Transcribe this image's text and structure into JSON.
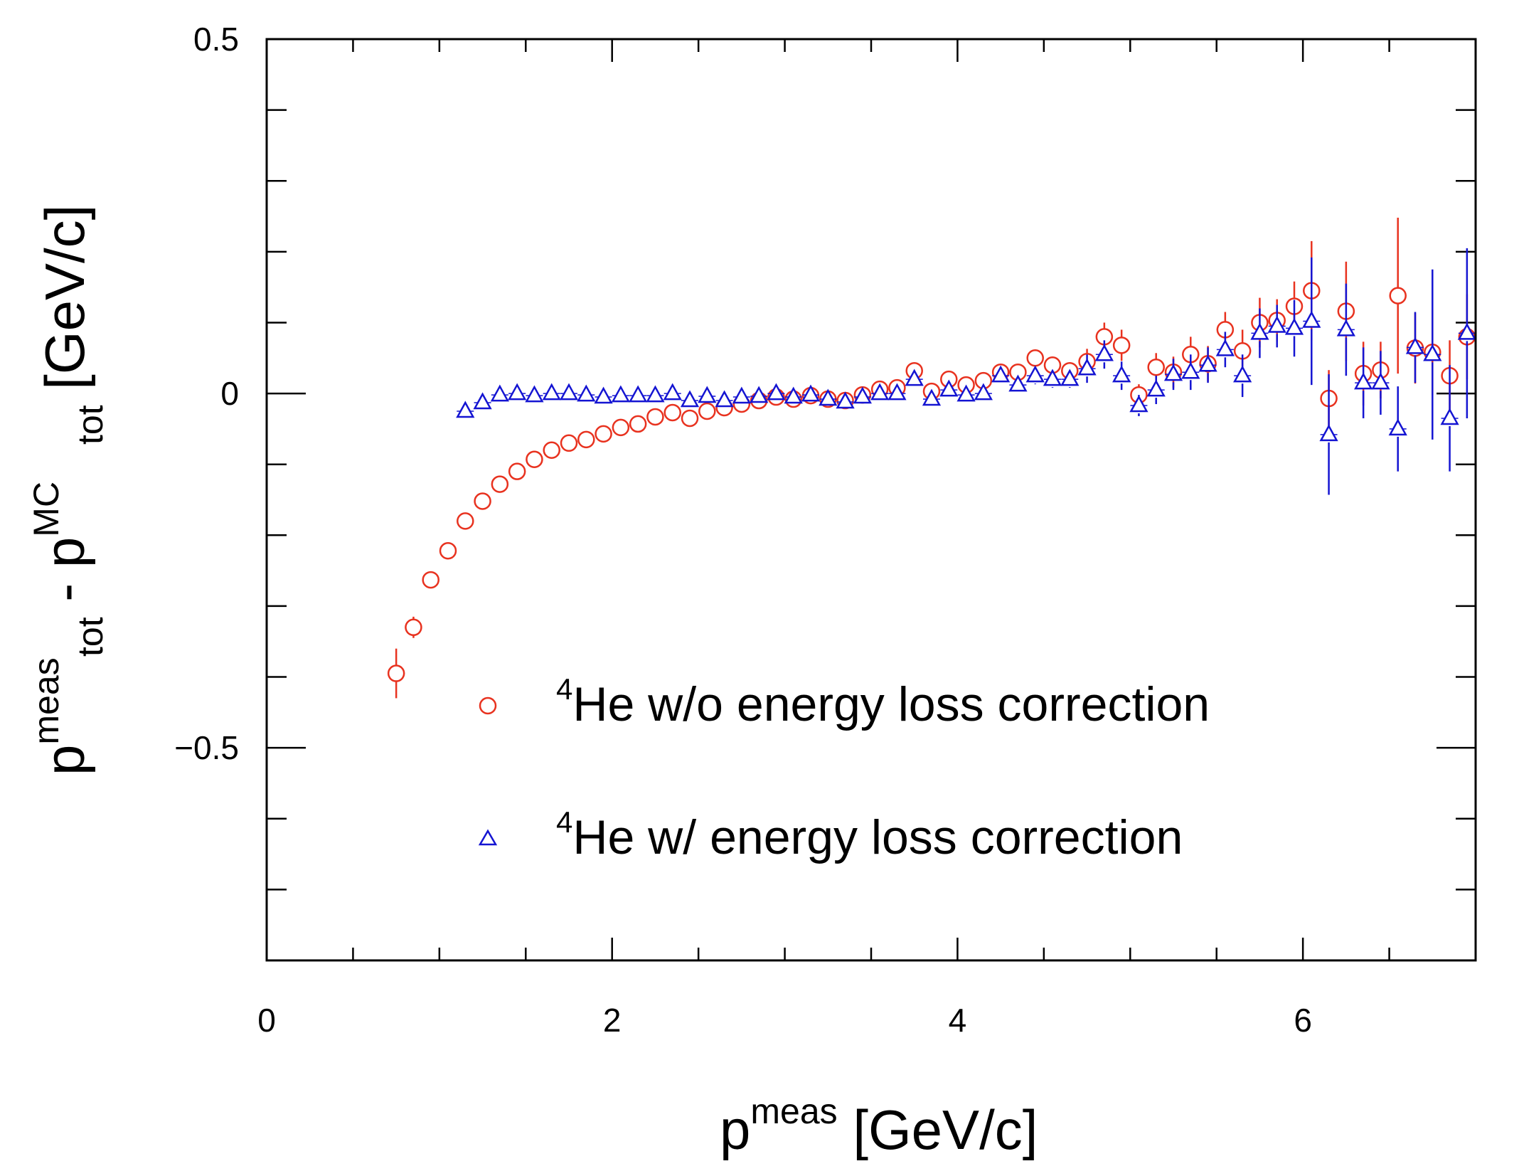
{
  "chart_data": {
    "type": "scatter",
    "xlabel": {
      "base": "p",
      "sup": "meas",
      "rest": " [GeV/c]"
    },
    "ylabel": {
      "base1": "p",
      "sub1": "tot",
      "sup1": "meas",
      "mid": " - ",
      "base2": "p",
      "sub2": "tot",
      "sup2": "MC",
      "rest": " [GeV/c]"
    },
    "xlim": [
      0,
      7
    ],
    "ylim": [
      -0.8,
      0.5
    ],
    "x_major_ticks": [
      0,
      2,
      4,
      6
    ],
    "x_tick_labels": [
      "0",
      "2",
      "4",
      "6"
    ],
    "x_minor_step": 0.5,
    "y_major_ticks": [
      0.5,
      0,
      -0.5
    ],
    "y_tick_labels": [
      "0.5",
      "0",
      "−0.5"
    ],
    "y_minor_step": 0.1,
    "legend_position": "bottom-right",
    "series": [
      {
        "name_sup": "4",
        "name": "He w/o energy loss correction",
        "marker": "circle",
        "color": "#e8321f",
        "x": [
          0.75,
          0.85,
          0.95,
          1.05,
          1.15,
          1.25,
          1.35,
          1.45,
          1.55,
          1.65,
          1.75,
          1.85,
          1.95,
          2.05,
          2.15,
          2.25,
          2.35,
          2.45,
          2.55,
          2.65,
          2.75,
          2.85,
          2.95,
          3.05,
          3.15,
          3.25,
          3.35,
          3.45,
          3.55,
          3.65,
          3.75,
          3.85,
          3.95,
          4.05,
          4.15,
          4.25,
          4.35,
          4.45,
          4.55,
          4.65,
          4.75,
          4.85,
          4.95,
          5.05,
          5.15,
          5.25,
          5.35,
          5.45,
          5.55,
          5.65,
          5.75,
          5.85,
          5.95,
          6.05,
          6.15,
          6.25,
          6.35,
          6.45,
          6.55,
          6.65,
          6.75,
          6.85,
          6.95
        ],
        "y": [
          -0.395,
          -0.33,
          -0.263,
          -0.222,
          -0.18,
          -0.152,
          -0.128,
          -0.11,
          -0.093,
          -0.08,
          -0.07,
          -0.065,
          -0.057,
          -0.048,
          -0.043,
          -0.033,
          -0.027,
          -0.035,
          -0.025,
          -0.02,
          -0.015,
          -0.01,
          -0.005,
          -0.008,
          -0.003,
          -0.008,
          -0.01,
          -0.002,
          0.006,
          0.008,
          0.032,
          0.003,
          0.02,
          0.012,
          0.018,
          0.03,
          0.03,
          0.05,
          0.04,
          0.032,
          0.045,
          0.08,
          0.068,
          -0.002,
          0.037,
          0.03,
          0.055,
          0.042,
          0.09,
          0.06,
          0.1,
          0.103,
          0.123,
          0.145,
          -0.007,
          0.116,
          0.028,
          0.033,
          0.138,
          0.064,
          0.058,
          0.025,
          0.08
        ],
        "err": [
          0.035,
          0.015,
          0.008,
          0.006,
          0.006,
          0.006,
          0.006,
          0.006,
          0.006,
          0.006,
          0.006,
          0.006,
          0.006,
          0.006,
          0.006,
          0.006,
          0.006,
          0.006,
          0.006,
          0.006,
          0.006,
          0.006,
          0.006,
          0.006,
          0.006,
          0.006,
          0.006,
          0.006,
          0.006,
          0.006,
          0.008,
          0.006,
          0.008,
          0.008,
          0.008,
          0.01,
          0.01,
          0.012,
          0.012,
          0.012,
          0.018,
          0.02,
          0.022,
          0.015,
          0.02,
          0.022,
          0.025,
          0.025,
          0.025,
          0.03,
          0.035,
          0.03,
          0.035,
          0.07,
          0.04,
          0.07,
          0.045,
          0.04,
          0.11,
          0.05,
          0.06,
          0.05,
          0.06
        ]
      },
      {
        "name_sup": "4",
        "name": "He w/ energy loss correction",
        "marker": "triangle",
        "color": "#1414d2",
        "x": [
          1.15,
          1.25,
          1.35,
          1.45,
          1.55,
          1.65,
          1.75,
          1.85,
          1.95,
          2.05,
          2.15,
          2.25,
          2.35,
          2.45,
          2.55,
          2.65,
          2.75,
          2.85,
          2.95,
          3.05,
          3.15,
          3.25,
          3.35,
          3.45,
          3.55,
          3.65,
          3.75,
          3.85,
          3.95,
          4.05,
          4.15,
          4.25,
          4.35,
          4.45,
          4.55,
          4.65,
          4.75,
          4.85,
          4.95,
          5.05,
          5.15,
          5.25,
          5.35,
          5.45,
          5.55,
          5.65,
          5.75,
          5.85,
          5.95,
          6.05,
          6.15,
          6.25,
          6.35,
          6.45,
          6.55,
          6.65,
          6.75,
          6.85,
          6.95
        ],
        "y": [
          -0.025,
          -0.013,
          -0.002,
          0.0,
          -0.003,
          0.0,
          0.0,
          -0.002,
          -0.005,
          -0.003,
          -0.003,
          -0.003,
          0.0,
          -0.01,
          -0.004,
          -0.01,
          -0.005,
          -0.004,
          0.0,
          -0.005,
          -0.002,
          -0.008,
          -0.012,
          -0.005,
          0.0,
          0.0,
          0.02,
          -0.008,
          0.005,
          -0.002,
          0.0,
          0.025,
          0.012,
          0.025,
          0.02,
          0.02,
          0.035,
          0.055,
          0.025,
          -0.017,
          0.005,
          0.027,
          0.03,
          0.04,
          0.062,
          0.025,
          0.085,
          0.095,
          0.092,
          0.102,
          -0.058,
          0.09,
          0.015,
          0.015,
          -0.05,
          0.065,
          0.055,
          -0.035,
          0.085
        ],
        "err": [
          0.005,
          0.005,
          0.005,
          0.005,
          0.005,
          0.005,
          0.005,
          0.005,
          0.005,
          0.005,
          0.005,
          0.005,
          0.005,
          0.005,
          0.005,
          0.005,
          0.005,
          0.005,
          0.005,
          0.005,
          0.005,
          0.005,
          0.005,
          0.005,
          0.005,
          0.005,
          0.008,
          0.006,
          0.008,
          0.008,
          0.008,
          0.01,
          0.01,
          0.012,
          0.012,
          0.012,
          0.02,
          0.02,
          0.02,
          0.015,
          0.02,
          0.022,
          0.025,
          0.025,
          0.025,
          0.03,
          0.035,
          0.03,
          0.04,
          0.09,
          0.085,
          0.065,
          0.05,
          0.045,
          0.06,
          0.05,
          0.12,
          0.075,
          0.12
        ]
      }
    ]
  }
}
